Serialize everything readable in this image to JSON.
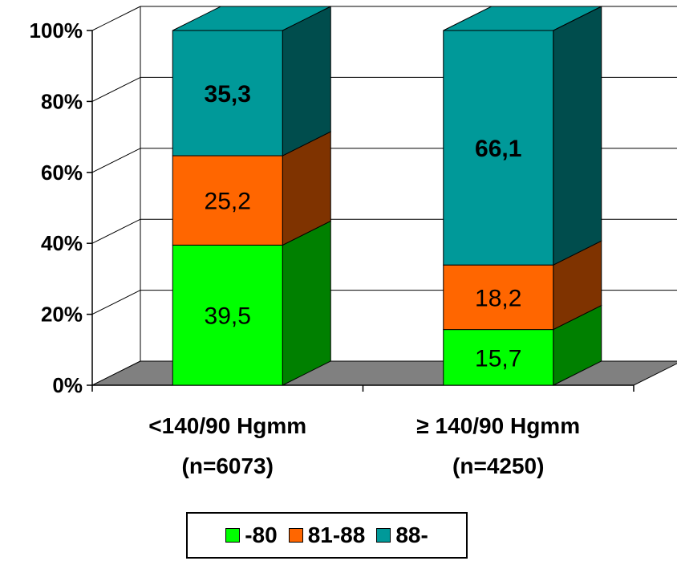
{
  "chart_data": {
    "type": "bar",
    "stacked": true,
    "three_d": true,
    "categories": [
      [
        "<140/90 Hgmm",
        "(n=6073)"
      ],
      [
        "≥ 140/90 Hgmm",
        "(n=4250)"
      ]
    ],
    "series": [
      {
        "name": "-80",
        "values": [
          39.5,
          15.7
        ],
        "labels": [
          "39,5",
          "15,7"
        ],
        "color": "#00FF00",
        "side_color": "#008000",
        "label_bold": false
      },
      {
        "name": "81-88",
        "values": [
          25.2,
          18.2
        ],
        "labels": [
          "25,2",
          "18,2"
        ],
        "color": "#FF6600",
        "side_color": "#7F3300",
        "label_bold": false
      },
      {
        "name": "88-",
        "values": [
          35.3,
          66.1
        ],
        "labels": [
          "35,3",
          "66,1"
        ],
        "color": "#009999",
        "side_color": "#004D4D",
        "label_bold": true
      }
    ],
    "ylim": [
      0,
      100
    ],
    "yticks": [
      "0%",
      "20%",
      "40%",
      "60%",
      "80%",
      "100%"
    ],
    "grid": true,
    "legend": "bottom",
    "floor_color": "#808080"
  }
}
